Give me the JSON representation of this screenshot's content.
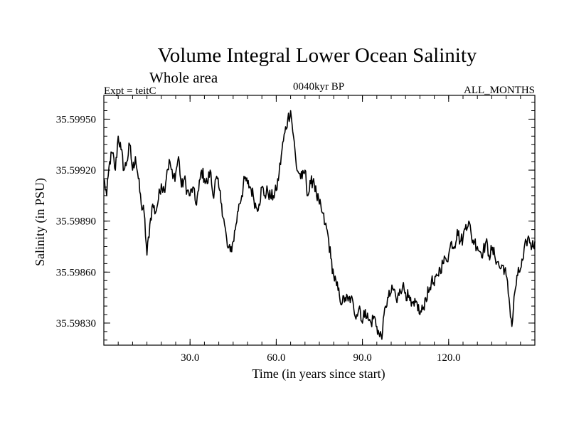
{
  "chart_data": {
    "type": "line",
    "title": "Volume Integral Lower Ocean Salinity",
    "subtitle": "Whole area",
    "header_left": "Expt = teitC",
    "header_center": "0040kyr BP",
    "header_right": "ALL_MONTHS",
    "xlabel": "Time (in years since start)",
    "ylabel": "Salinity (in PSU)",
    "xlim": [
      0,
      150
    ],
    "ylim": [
      35.59817,
      35.59964
    ],
    "x_ticks": [
      30,
      60,
      90,
      120
    ],
    "x_tick_labels": [
      "30.0",
      "60.0",
      "90.0",
      "120.0"
    ],
    "y_ticks": [
      35.5983,
      35.5986,
      35.5989,
      35.5992,
      35.5995
    ],
    "y_tick_labels": [
      "35.59830",
      "35.59860",
      "35.59890",
      "35.59920",
      "35.59950"
    ],
    "grid": false,
    "series": [
      {
        "name": "Salinity",
        "color": "#000000",
        "x": [
          0,
          1,
          2,
          3,
          4,
          5,
          6,
          7,
          8,
          9,
          10,
          11,
          12,
          13,
          14,
          15,
          16,
          17,
          18,
          19,
          20,
          21,
          22,
          23,
          24,
          25,
          26,
          27,
          28,
          29,
          30,
          31,
          32,
          33,
          34,
          35,
          36,
          37,
          38,
          39,
          40,
          41,
          42,
          43,
          44,
          45,
          46,
          47,
          48,
          49,
          50,
          51,
          52,
          53,
          54,
          55,
          56,
          57,
          58,
          59,
          60,
          61,
          62,
          63,
          64,
          65,
          66,
          67,
          68,
          69,
          70,
          71,
          72,
          73,
          74,
          75,
          76,
          77,
          78,
          79,
          80,
          81,
          82,
          83,
          84,
          85,
          86,
          87,
          88,
          89,
          90,
          91,
          92,
          93,
          94,
          95,
          96,
          97,
          98,
          99,
          100,
          101,
          102,
          103,
          104,
          105,
          106,
          107,
          108,
          109,
          110,
          111,
          112,
          113,
          114,
          115,
          116,
          117,
          118,
          119,
          120,
          121,
          122,
          123,
          124,
          125,
          126,
          127,
          128,
          129,
          130,
          131,
          132,
          133,
          134,
          135,
          136,
          137,
          138,
          139,
          140,
          141,
          142,
          143,
          144,
          145,
          146,
          147,
          148,
          149,
          150
        ],
        "values": [
          35.59915,
          35.59905,
          35.59925,
          35.5993,
          35.5992,
          35.5994,
          35.59932,
          35.5992,
          35.59925,
          35.59935,
          35.5992,
          35.59928,
          35.59915,
          35.599,
          35.59895,
          35.5987,
          35.59888,
          35.599,
          35.59895,
          35.59903,
          35.59912,
          35.59908,
          35.5992,
          35.59925,
          35.59915,
          35.59918,
          35.59928,
          35.5991,
          35.59915,
          35.59908,
          35.59905,
          35.5991,
          35.599,
          35.59908,
          35.5992,
          35.59915,
          35.59912,
          35.5992,
          35.59905,
          35.59915,
          35.5991,
          35.599,
          35.59888,
          35.59875,
          35.59872,
          35.59878,
          35.59888,
          35.599,
          35.59905,
          35.59915,
          35.59912,
          35.5991,
          35.59905,
          35.59898,
          35.599,
          35.5991,
          35.59905,
          35.59908,
          35.59904,
          35.59905,
          35.59908,
          35.59918,
          35.59932,
          35.59942,
          35.5995,
          35.59955,
          35.5994,
          35.59922,
          35.59918,
          35.59915,
          35.5992,
          35.59905,
          35.59912,
          35.59915,
          35.59905,
          35.599,
          35.59895,
          35.59888,
          35.59882,
          35.59868,
          35.59858,
          35.59852,
          35.59846,
          35.59842,
          35.59845,
          35.59843,
          35.59845,
          35.59838,
          35.59835,
          35.5984,
          35.5983,
          35.59838,
          35.59832,
          35.5983,
          35.59834,
          35.59828,
          35.59822,
          35.59825,
          35.5984,
          35.59845,
          35.59848,
          35.5985,
          35.59842,
          35.5985,
          35.59852,
          35.59848,
          35.59845,
          35.5984,
          35.5984,
          35.59842,
          35.59835,
          35.59838,
          35.59845,
          35.59848,
          35.59855,
          35.59852,
          35.59858,
          35.59862,
          35.59865,
          35.59868,
          35.5987,
          35.59878,
          35.59875,
          35.59885,
          35.59878,
          35.5988,
          35.59888,
          35.5989,
          35.5988,
          35.59878,
          35.59875,
          35.59872,
          35.59872,
          35.59878,
          35.5987,
          35.59873,
          35.5987,
          35.59866,
          35.59862,
          35.59864,
          35.59858,
          35.59845,
          35.59828,
          35.59848,
          35.59858,
          35.59862,
          35.59868,
          35.59878,
          35.5988,
          35.59875,
          35.59878
        ]
      }
    ]
  }
}
